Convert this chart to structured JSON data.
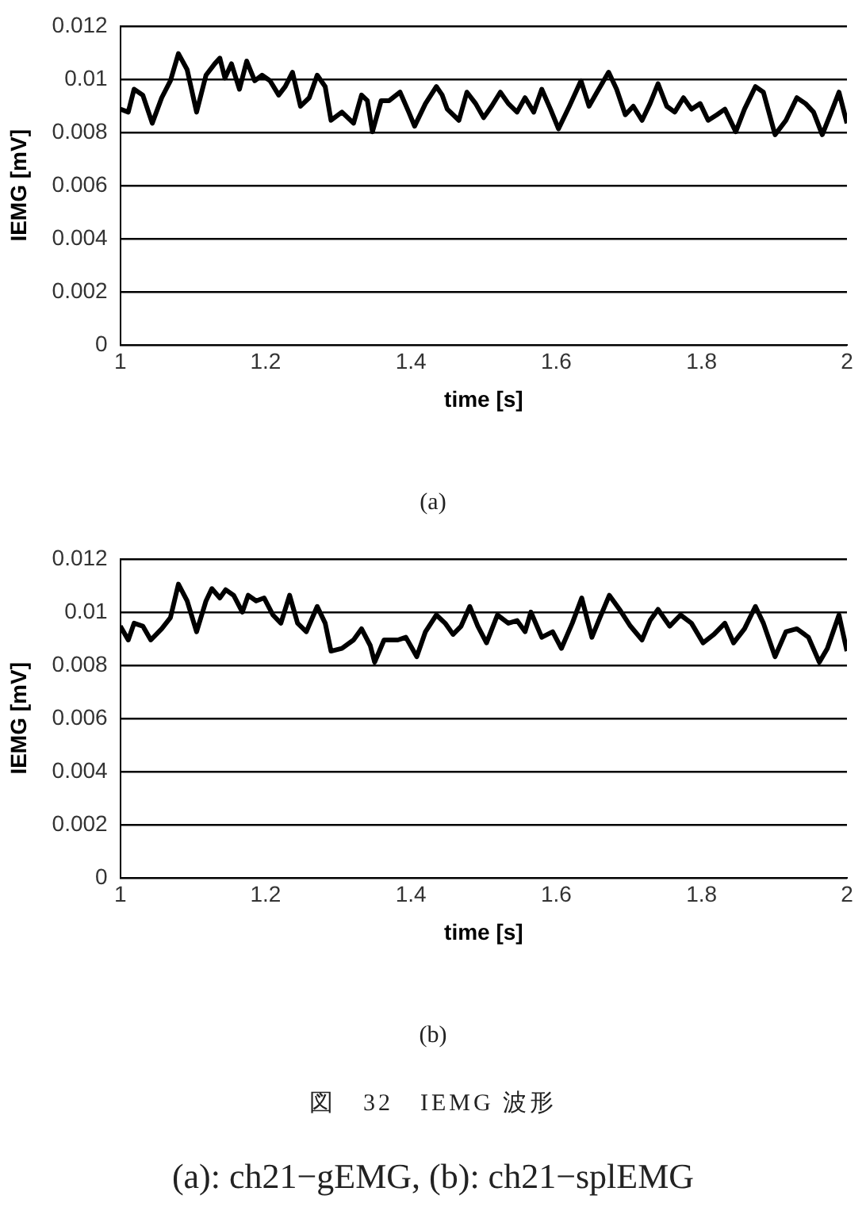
{
  "chart_data": [
    {
      "type": "line",
      "xlabel": "time [s]",
      "ylabel": "IEMG [mV]",
      "xlim": [
        1,
        2
      ],
      "xticks": [
        1,
        1.2,
        1.4,
        1.6,
        1.8,
        2
      ],
      "ylim": [
        0,
        0.012
      ],
      "yticks": [
        0,
        0.002,
        0.004,
        0.006,
        0.008,
        0.01,
        0.012
      ],
      "grid": "y",
      "legend": false,
      "marker": "none",
      "line_style": "solid",
      "annotations": [
        "(a)"
      ],
      "series": [
        {
          "color": "#000000",
          "x": [
            1.0,
            1.011,
            1.019,
            1.031,
            1.044,
            1.057,
            1.069,
            1.08,
            1.092,
            1.105,
            1.118,
            1.13,
            1.137,
            1.144,
            1.153,
            1.164,
            1.174,
            1.185,
            1.195,
            1.206,
            1.218,
            1.227,
            1.237,
            1.248,
            1.26,
            1.271,
            1.282,
            1.29,
            1.305,
            1.321,
            1.332,
            1.34,
            1.347,
            1.359,
            1.37,
            1.385,
            1.397,
            1.405,
            1.42,
            1.435,
            1.443,
            1.45,
            1.466,
            1.477,
            1.489,
            1.5,
            1.511,
            1.523,
            1.534,
            1.546,
            1.557,
            1.569,
            1.58,
            1.592,
            1.603,
            1.618,
            1.634,
            1.645,
            1.656,
            1.672,
            1.683,
            1.695,
            1.706,
            1.718,
            1.729,
            1.74,
            1.752,
            1.763,
            1.775,
            1.786,
            1.798,
            1.809,
            1.821,
            1.832,
            1.847,
            1.859,
            1.874,
            1.885,
            1.901,
            1.916,
            1.931,
            1.943,
            1.954,
            1.966,
            1.977,
            1.989,
            2.0
          ],
          "values": [
            0.00887,
            0.00876,
            0.00962,
            0.0094,
            0.00834,
            0.0093,
            0.00994,
            0.01096,
            0.01036,
            0.00876,
            0.01015,
            0.01058,
            0.01079,
            0.01004,
            0.01058,
            0.00962,
            0.01068,
            0.00994,
            0.01015,
            0.00994,
            0.0094,
            0.00972,
            0.01026,
            0.00898,
            0.0093,
            0.01015,
            0.00972,
            0.00845,
            0.00876,
            0.00834,
            0.0094,
            0.00919,
            0.00802,
            0.00919,
            0.00919,
            0.00951,
            0.00876,
            0.00823,
            0.00908,
            0.00972,
            0.0094,
            0.00887,
            0.00845,
            0.00951,
            0.00908,
            0.00855,
            0.00898,
            0.00951,
            0.00908,
            0.00876,
            0.0093,
            0.00876,
            0.00962,
            0.00887,
            0.00813,
            0.00898,
            0.00994,
            0.00898,
            0.00951,
            0.01026,
            0.00962,
            0.00866,
            0.00898,
            0.00845,
            0.00908,
            0.00983,
            0.00898,
            0.00876,
            0.0093,
            0.00887,
            0.00908,
            0.00845,
            0.00866,
            0.00887,
            0.00802,
            0.00887,
            0.00972,
            0.00951,
            0.00791,
            0.00845,
            0.0093,
            0.00908,
            0.00876,
            0.00791,
            0.00866,
            0.00951,
            0.00834
          ]
        }
      ]
    },
    {
      "type": "line",
      "xlabel": "time [s]",
      "ylabel": "IEMG [mV]",
      "xlim": [
        1,
        2
      ],
      "xticks": [
        1,
        1.2,
        1.4,
        1.6,
        1.8,
        2
      ],
      "ylim": [
        0,
        0.012
      ],
      "yticks": [
        0,
        0.002,
        0.004,
        0.006,
        0.008,
        0.01,
        0.012
      ],
      "grid": "y",
      "legend": false,
      "marker": "none",
      "line_style": "solid",
      "annotations": [
        "(b)",
        "図　32　IEMG 波形",
        "(a): ch21−gEMG, (b): ch21−splEMG"
      ],
      "series": [
        {
          "color": "#000000",
          "x": [
            1.0,
            1.011,
            1.019,
            1.031,
            1.042,
            1.057,
            1.069,
            1.08,
            1.092,
            1.105,
            1.118,
            1.126,
            1.137,
            1.145,
            1.156,
            1.168,
            1.176,
            1.187,
            1.198,
            1.21,
            1.221,
            1.233,
            1.244,
            1.256,
            1.271,
            1.282,
            1.29,
            1.305,
            1.321,
            1.332,
            1.344,
            1.35,
            1.363,
            1.382,
            1.393,
            1.408,
            1.42,
            1.435,
            1.447,
            1.458,
            1.469,
            1.481,
            1.492,
            1.504,
            1.519,
            1.534,
            1.546,
            1.557,
            1.565,
            1.58,
            1.595,
            1.607,
            1.622,
            1.635,
            1.649,
            1.66,
            1.673,
            1.687,
            1.702,
            1.718,
            1.729,
            1.74,
            1.756,
            1.771,
            1.786,
            1.802,
            1.817,
            1.832,
            1.844,
            1.859,
            1.874,
            1.885,
            1.901,
            1.916,
            1.931,
            1.947,
            1.962,
            1.973,
            1.989,
            2.0
          ],
          "values": [
            0.00947,
            0.00895,
            0.00958,
            0.00947,
            0.00895,
            0.00937,
            0.00979,
            0.01105,
            0.01042,
            0.00926,
            0.01042,
            0.01088,
            0.01053,
            0.01084,
            0.01063,
            0.01,
            0.01063,
            0.01042,
            0.01053,
            0.00989,
            0.00958,
            0.01063,
            0.00958,
            0.00926,
            0.01021,
            0.00958,
            0.00853,
            0.00863,
            0.00895,
            0.00937,
            0.00874,
            0.00811,
            0.00895,
            0.00895,
            0.00905,
            0.00832,
            0.00926,
            0.00989,
            0.00958,
            0.00916,
            0.00947,
            0.01021,
            0.00947,
            0.00884,
            0.00989,
            0.00958,
            0.00968,
            0.00926,
            0.01,
            0.00905,
            0.00926,
            0.00863,
            0.00958,
            0.01053,
            0.00905,
            0.00979,
            0.01063,
            0.0101,
            0.00947,
            0.00895,
            0.00968,
            0.0101,
            0.00947,
            0.00989,
            0.00958,
            0.00884,
            0.00916,
            0.00958,
            0.00884,
            0.00937,
            0.01021,
            0.00958,
            0.00832,
            0.00926,
            0.00937,
            0.00905,
            0.00811,
            0.00863,
            0.00989,
            0.00853
          ]
        }
      ]
    }
  ]
}
